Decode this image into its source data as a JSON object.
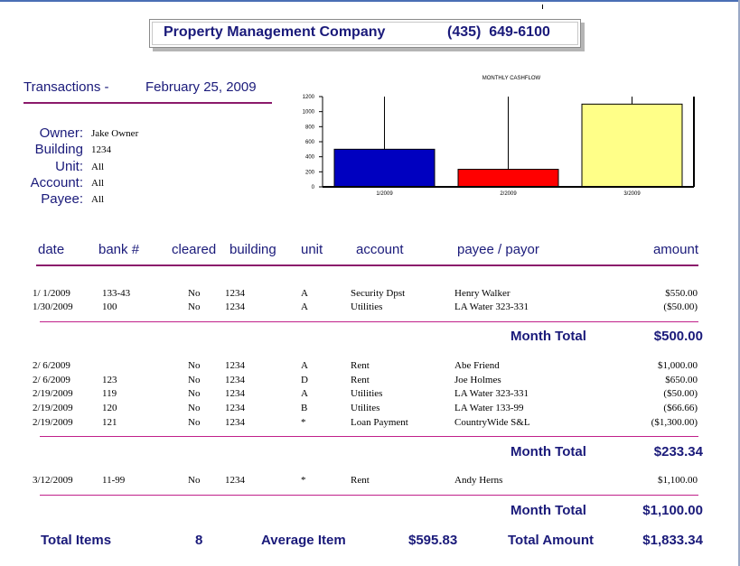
{
  "header": {
    "company": "Property Management Company",
    "phone": "(435)  649-6100"
  },
  "report": {
    "label": "Transactions -",
    "date": "February 25, 2009"
  },
  "filters": [
    {
      "label": "Owner:",
      "value": "Jake Owner"
    },
    {
      "label": "Building",
      "value": "1234"
    },
    {
      "label": "Unit:",
      "value": "All"
    },
    {
      "label": "Account:",
      "value": "All"
    },
    {
      "label": "Payee:",
      "value": "All"
    }
  ],
  "columns": {
    "date": "date",
    "bank": "bank #",
    "cleared": "cleared",
    "building": "building",
    "unit": "unit",
    "account": "account",
    "payee": "payee / payor",
    "amount": "amount"
  },
  "groups": [
    {
      "rows": [
        {
          "date": "1/ 1/2009",
          "bank": "133-43",
          "cleared": "No",
          "building": "1234",
          "unit": "A",
          "account": "Security Dpst",
          "payee": "Henry Walker",
          "amount": "$550.00"
        },
        {
          "date": "1/30/2009",
          "bank": "100",
          "cleared": "No",
          "building": "1234",
          "unit": "A",
          "account": "Utilities",
          "payee": "LA Water  323-331",
          "amount": "($50.00)"
        }
      ],
      "total_label": "Month Total",
      "total": "$500.00"
    },
    {
      "rows": [
        {
          "date": "2/ 6/2009",
          "bank": "",
          "cleared": "No",
          "building": "1234",
          "unit": "A",
          "account": "Rent",
          "payee": "Abe Friend",
          "amount": "$1,000.00"
        },
        {
          "date": "2/ 6/2009",
          "bank": "123",
          "cleared": "No",
          "building": "1234",
          "unit": "D",
          "account": "Rent",
          "payee": "Joe Holmes",
          "amount": "$650.00"
        },
        {
          "date": "2/19/2009",
          "bank": "119",
          "cleared": "No",
          "building": "1234",
          "unit": "A",
          "account": "Utilities",
          "payee": "LA Water  323-331",
          "amount": "($50.00)"
        },
        {
          "date": "2/19/2009",
          "bank": "120",
          "cleared": "No",
          "building": "1234",
          "unit": "B",
          "account": "Utilites",
          "payee": "LA Water  133-99",
          "amount": "($66.66)"
        },
        {
          "date": "2/19/2009",
          "bank": "121",
          "cleared": "No",
          "building": "1234",
          "unit": "*",
          "account": "Loan Payment",
          "payee": "CountryWide S&L",
          "amount": "($1,300.00)"
        }
      ],
      "total_label": "Month Total",
      "total": "$233.34"
    },
    {
      "rows": [
        {
          "date": "3/12/2009",
          "bank": "11-99",
          "cleared": "No",
          "building": "1234",
          "unit": "*",
          "account": "Rent",
          "payee": "Andy Herns",
          "amount": "$1,100.00"
        }
      ],
      "total_label": "Month Total",
      "total": "$1,100.00"
    }
  ],
  "footer": {
    "items_label": "Total Items",
    "items_count": "8",
    "average_label": "Average Item",
    "average_value": "$595.83",
    "total_label": "Total Amount",
    "total_value": "$1,833.34"
  },
  "colors": {
    "navy": "#1a1a7a",
    "rule": "#8b1a6b",
    "bar1": "#0000c0",
    "bar2": "#ff0000",
    "bar3": "#ffff88"
  },
  "chart_data": {
    "type": "bar",
    "title": "MONTHLY CASHFLOW",
    "categories": [
      "1/2009",
      "2/2009",
      "3/2009"
    ],
    "values": [
      500,
      233.34,
      1100
    ],
    "colors": [
      "#0000c0",
      "#ff0000",
      "#ffff88"
    ],
    "yticks": [
      "1200",
      "1000",
      "800",
      "600",
      "400",
      "200",
      "0"
    ],
    "ylim": [
      0,
      1200
    ],
    "legend": "none"
  }
}
